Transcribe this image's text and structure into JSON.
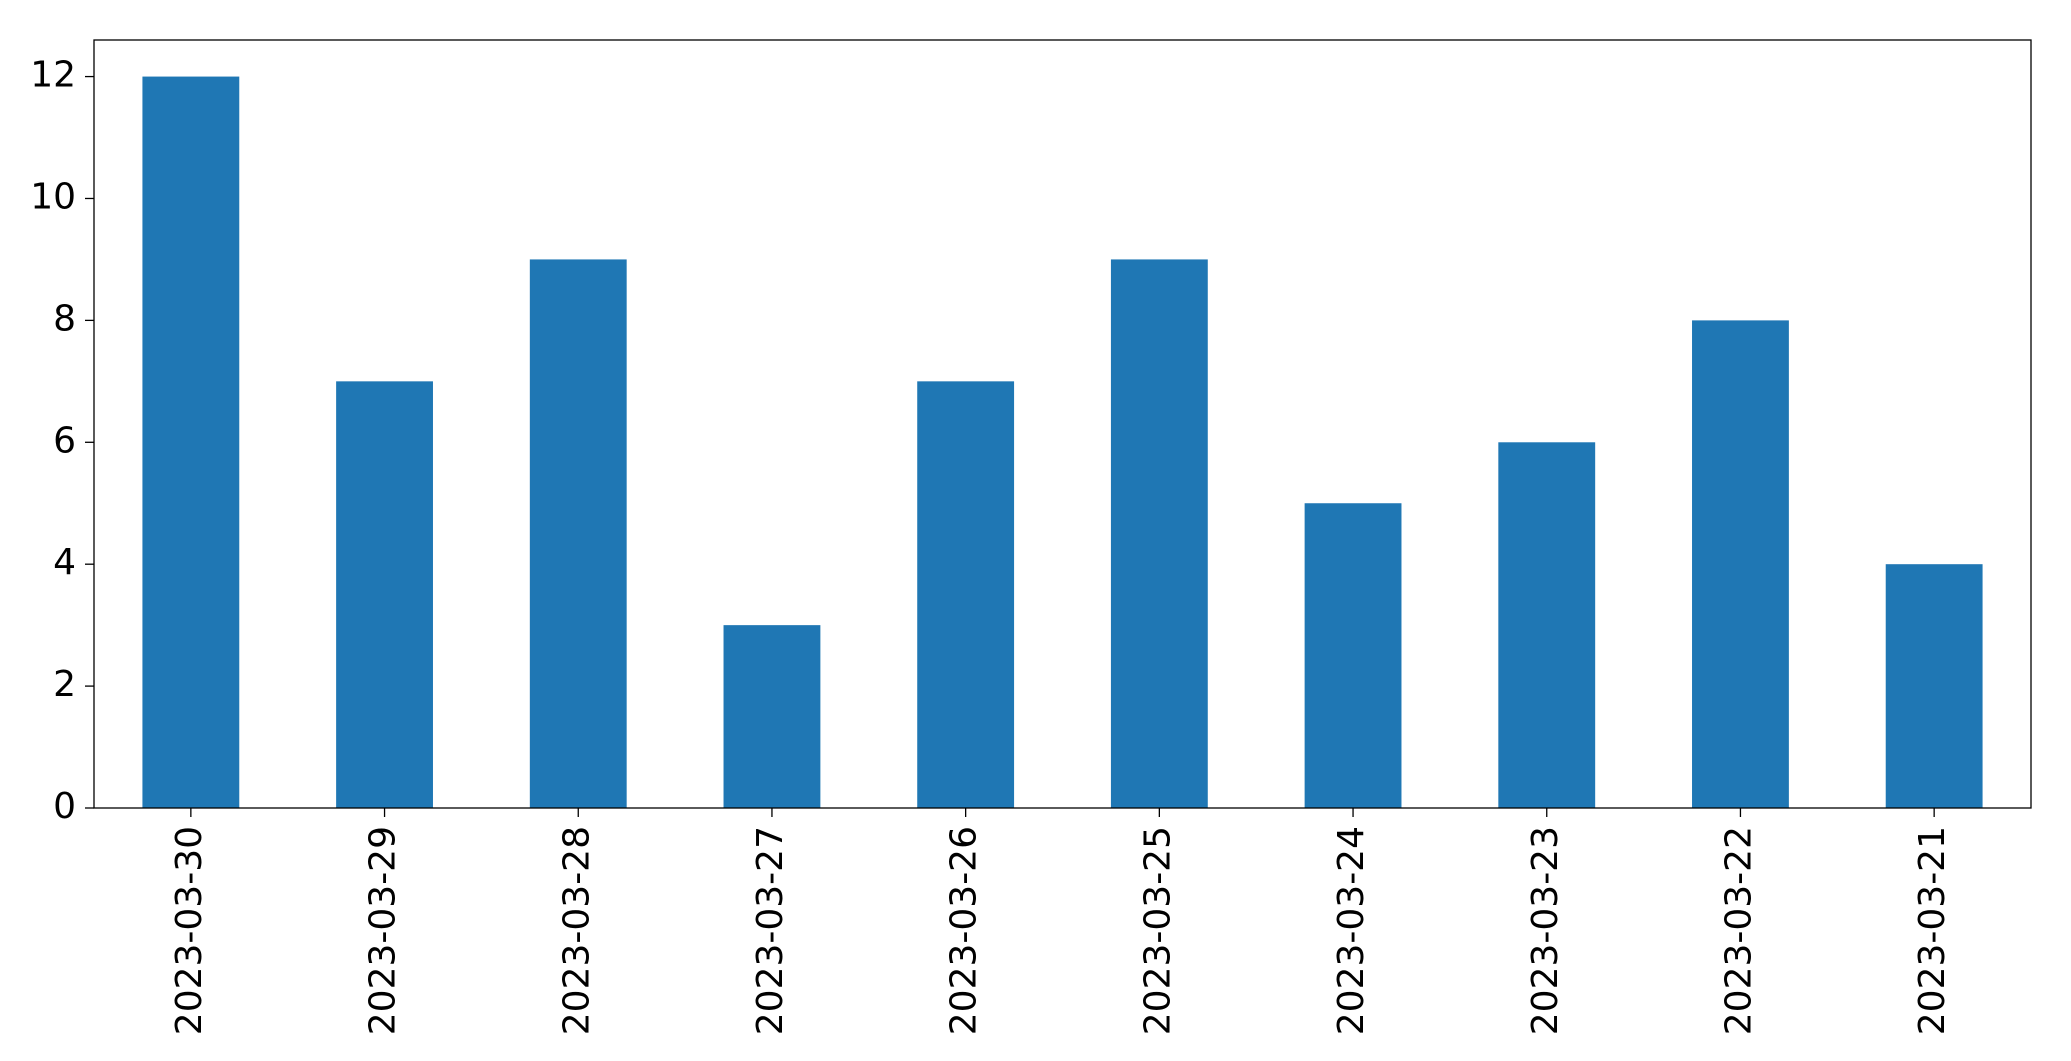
{
  "chart_data": {
    "type": "bar",
    "categories": [
      "2023-03-30",
      "2023-03-29",
      "2023-03-28",
      "2023-03-27",
      "2023-03-26",
      "2023-03-25",
      "2023-03-24",
      "2023-03-23",
      "2023-03-22",
      "2023-03-21"
    ],
    "values": [
      12,
      7,
      9,
      3,
      7,
      9,
      5,
      6,
      8,
      4
    ],
    "color": "#1f77b4",
    "ylim": [
      0,
      12.6
    ],
    "yticks": [
      0,
      2,
      4,
      6,
      8,
      10,
      12
    ],
    "grid": false
  }
}
